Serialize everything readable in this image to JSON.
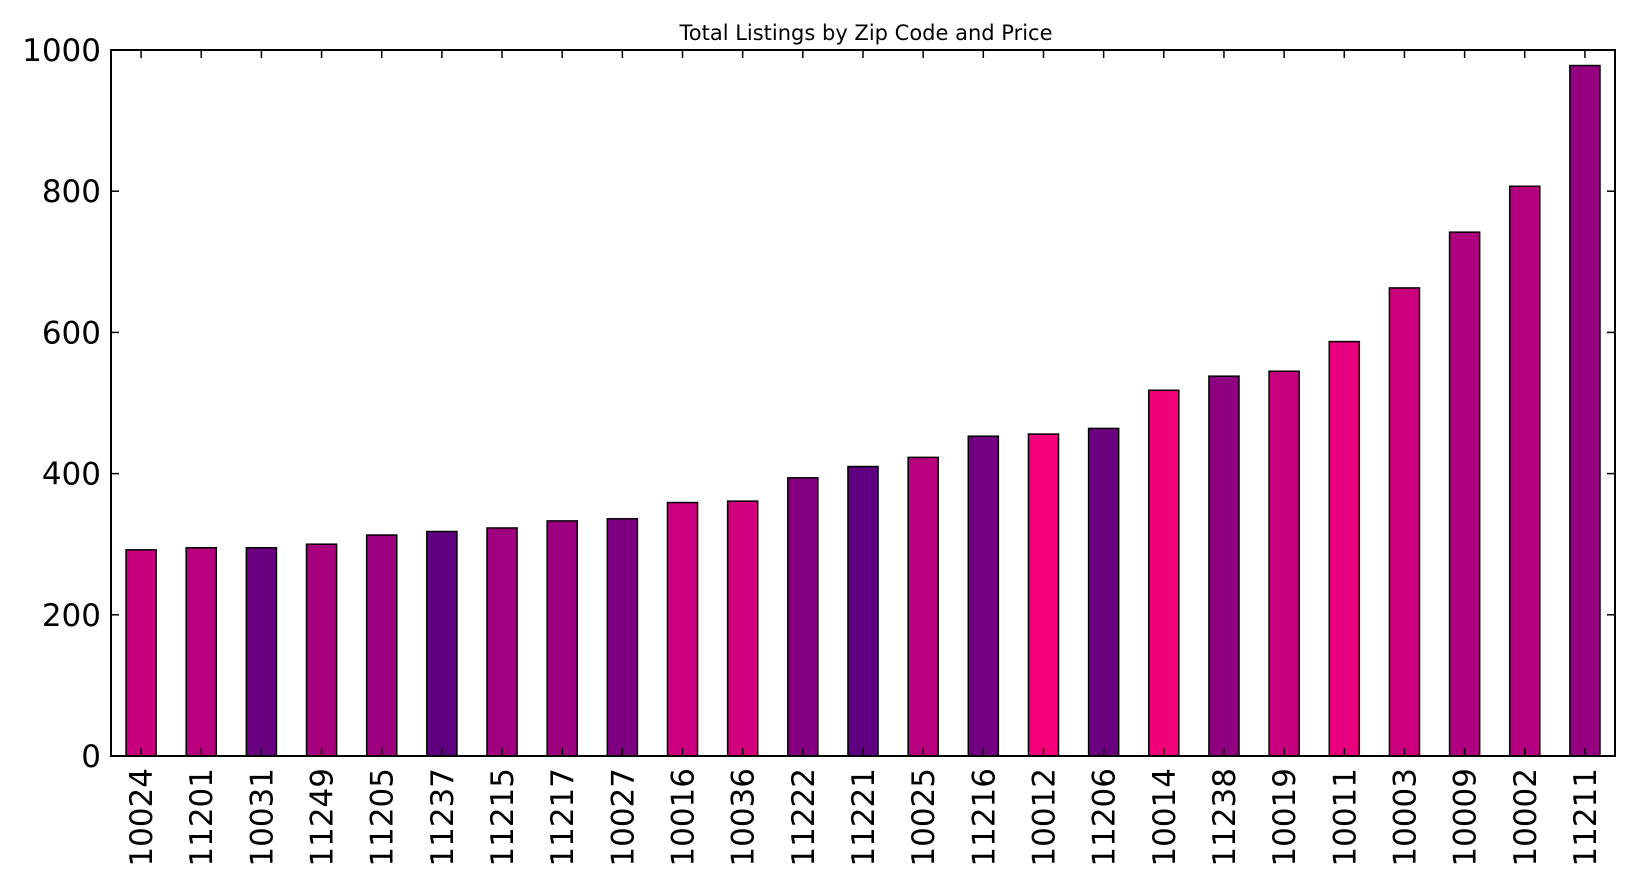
{
  "chart_data": {
    "type": "bar",
    "title": "Total Listings by Zip Code and Price",
    "xlabel": "",
    "ylabel": "",
    "ylim": [
      0,
      1000
    ],
    "yticks": [
      0,
      200,
      400,
      600,
      800,
      1000
    ],
    "grid": false,
    "legend": "none",
    "categories": [
      "10024",
      "11201",
      "10031",
      "11249",
      "11205",
      "11237",
      "11215",
      "11217",
      "10027",
      "10016",
      "10036",
      "11222",
      "11221",
      "10025",
      "11216",
      "10012",
      "11206",
      "10014",
      "11238",
      "10019",
      "10011",
      "10003",
      "10009",
      "10002",
      "11211"
    ],
    "values": [
      292,
      295,
      295,
      300,
      313,
      318,
      323,
      333,
      336,
      359,
      361,
      394,
      410,
      423,
      453,
      456,
      464,
      518,
      538,
      545,
      587,
      663,
      742,
      807,
      978
    ],
    "colors": [
      "#c9007d",
      "#b8007f",
      "#680080",
      "#a6007f",
      "#9d007f",
      "#5e0080",
      "#a0007f",
      "#9c007f",
      "#7c0080",
      "#cc007e",
      "#d2007d",
      "#840080",
      "#5e0080",
      "#b8007f",
      "#730080",
      "#f5007c",
      "#6a0080",
      "#f2007c",
      "#8f0080",
      "#c7007e",
      "#e6007d",
      "#cc007e",
      "#b0007f",
      "#b3007f",
      "#940080"
    ]
  }
}
